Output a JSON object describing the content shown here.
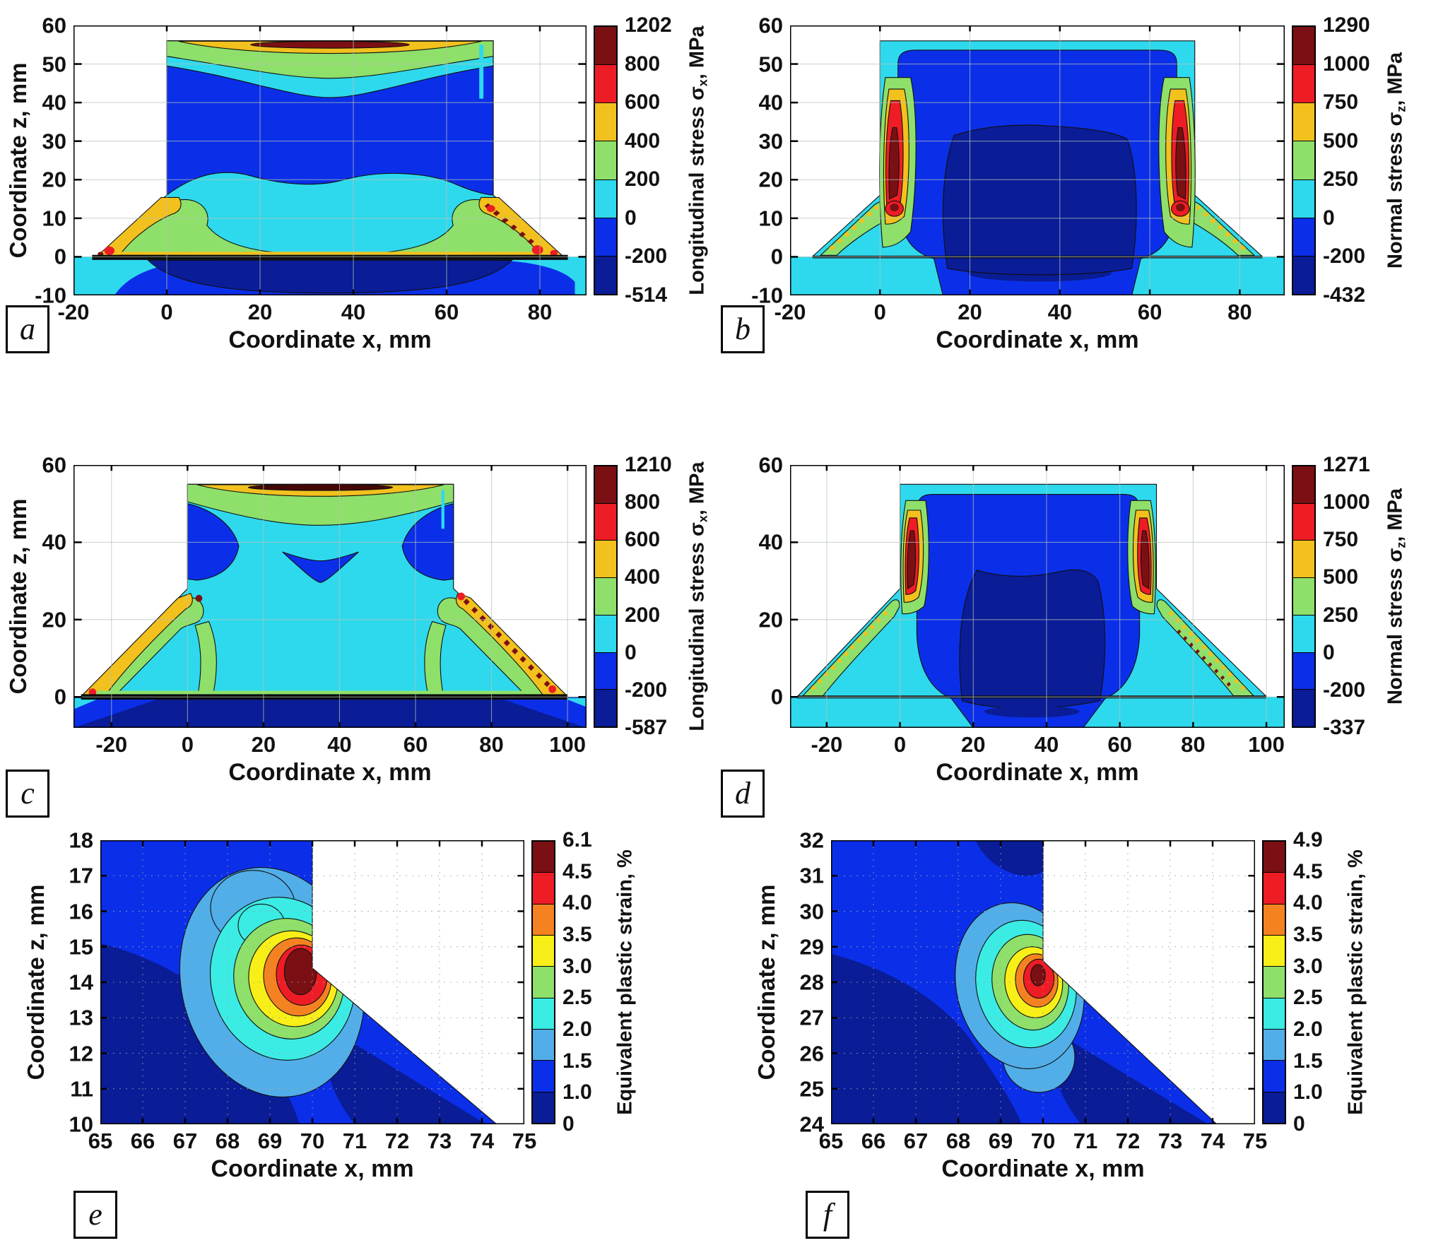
{
  "chart_data": [
    {
      "panel_letter": "a",
      "type": "heatmap",
      "plot_kind": "filled-contour",
      "x_title": "Coordinate x, mm",
      "y_title": "Coordinate z, mm",
      "x_domain": [
        -20,
        90
      ],
      "y_domain": [
        -10,
        60
      ],
      "x_ticks": {
        "values": [
          -20,
          0,
          20,
          40,
          60,
          80
        ],
        "labels": [
          "-20",
          "0",
          "20",
          "40",
          "60",
          "80"
        ]
      },
      "y_ticks": {
        "values": [
          60,
          50,
          40,
          30,
          20,
          10,
          0,
          -10
        ],
        "labels": [
          "60",
          "50",
          "40",
          "30",
          "20",
          "10",
          "0",
          "-10"
        ]
      },
      "colorbar": {
        "title_prefix": "Longitudinal stress σ",
        "title_sub": "x",
        "title_suffix": ", MPa",
        "vmax": 1202,
        "vmin": -514,
        "levels": [
          1202,
          800,
          600,
          400,
          200,
          0,
          -200,
          -514
        ],
        "tick_labels": [
          "1202",
          "800",
          "600",
          "400",
          "200",
          "0",
          "-200",
          "-514"
        ],
        "colors": [
          "#7a1013",
          "#ee1c25",
          "#f2c11e",
          "#8ee06a",
          "#2ed9ee",
          "#0b2fe8",
          "#0a1c96"
        ]
      }
    },
    {
      "panel_letter": "b",
      "type": "heatmap",
      "plot_kind": "filled-contour",
      "x_title": "Coordinate x, mm",
      "y_title": "",
      "x_domain": [
        -20,
        90
      ],
      "y_domain": [
        -10,
        60
      ],
      "x_ticks": {
        "values": [
          -20,
          0,
          20,
          40,
          60,
          80
        ],
        "labels": [
          "-20",
          "0",
          "20",
          "40",
          "60",
          "80"
        ]
      },
      "y_ticks": {
        "values": [
          60,
          50,
          40,
          30,
          20,
          10,
          0,
          -10
        ],
        "labels": [
          "60",
          "50",
          "40",
          "30",
          "20",
          "10",
          "0",
          "-10"
        ]
      },
      "colorbar": {
        "title_prefix": "Normal stress σ",
        "title_sub": "z",
        "title_suffix": ", MPa",
        "vmax": 1290,
        "vmin": -432,
        "levels": [
          1290,
          1000,
          750,
          500,
          250,
          0,
          -200,
          -432
        ],
        "tick_labels": [
          "1290",
          "1000",
          "750",
          "500",
          "250",
          "0",
          "-200",
          "-432"
        ],
        "colors": [
          "#7a1013",
          "#ee1c25",
          "#f2c11e",
          "#8ee06a",
          "#2ed9ee",
          "#0b2fe8",
          "#0a1c96"
        ]
      }
    },
    {
      "panel_letter": "c",
      "type": "heatmap",
      "plot_kind": "filled-contour",
      "x_title": "Coordinate x, mm",
      "y_title": "Coordinate z, mm",
      "x_domain": [
        -30,
        105
      ],
      "y_domain": [
        -8,
        60
      ],
      "x_ticks": {
        "values": [
          -20,
          0,
          20,
          40,
          60,
          80,
          100
        ],
        "labels": [
          "-20",
          "0",
          "20",
          "40",
          "60",
          "80",
          "100"
        ]
      },
      "y_ticks": {
        "values": [
          60,
          40,
          20,
          0
        ],
        "labels": [
          "60",
          "40",
          "20",
          "0"
        ]
      },
      "colorbar": {
        "title_prefix": "Longitudinal stress σ",
        "title_sub": "x",
        "title_suffix": ", MPa",
        "vmax": 1210,
        "vmin": -587,
        "levels": [
          1210,
          800,
          600,
          400,
          200,
          0,
          -200,
          -587
        ],
        "tick_labels": [
          "1210",
          "800",
          "600",
          "400",
          "200",
          "0",
          "-200",
          "-587"
        ],
        "colors": [
          "#7a1013",
          "#ee1c25",
          "#f2c11e",
          "#8ee06a",
          "#2ed9ee",
          "#0b2fe8",
          "#0a1c96"
        ]
      }
    },
    {
      "panel_letter": "d",
      "type": "heatmap",
      "plot_kind": "filled-contour",
      "x_title": "Coordinate x, mm",
      "y_title": "",
      "x_domain": [
        -30,
        105
      ],
      "y_domain": [
        -8,
        60
      ],
      "x_ticks": {
        "values": [
          -20,
          0,
          20,
          40,
          60,
          80,
          100
        ],
        "labels": [
          "-20",
          "0",
          "20",
          "40",
          "60",
          "80",
          "100"
        ]
      },
      "y_ticks": {
        "values": [
          60,
          40,
          20,
          0
        ],
        "labels": [
          "60",
          "40",
          "20",
          "0"
        ]
      },
      "colorbar": {
        "title_prefix": "Normal stress σ",
        "title_sub": "z",
        "title_suffix": ", MPa",
        "vmax": 1271,
        "vmin": -337,
        "levels": [
          1271,
          1000,
          750,
          500,
          250,
          0,
          -200,
          -337
        ],
        "tick_labels": [
          "1271",
          "1000",
          "750",
          "500",
          "250",
          "0",
          "-200",
          "-337"
        ],
        "colors": [
          "#7a1013",
          "#ee1c25",
          "#f2c11e",
          "#8ee06a",
          "#2ed9ee",
          "#0b2fe8",
          "#0a1c96"
        ]
      }
    },
    {
      "panel_letter": "e",
      "type": "heatmap",
      "plot_kind": "filled-contour",
      "x_title": "Coordinate x, mm",
      "y_title": "Coordinate z, mm",
      "x_domain": [
        65,
        75
      ],
      "y_domain": [
        10,
        18
      ],
      "x_ticks": {
        "values": [
          65,
          66,
          67,
          68,
          69,
          70,
          71,
          72,
          73,
          74,
          75
        ],
        "labels": [
          "65",
          "66",
          "67",
          "68",
          "69",
          "70",
          "71",
          "72",
          "73",
          "74",
          "75"
        ]
      },
      "y_ticks": {
        "values": [
          18,
          17,
          16,
          15,
          14,
          13,
          12,
          11,
          10
        ],
        "labels": [
          "18",
          "17",
          "16",
          "15",
          "14",
          "13",
          "12",
          "11",
          "10"
        ]
      },
      "colorbar": {
        "title_prefix": "Equivalent plastic strain, %",
        "title_sub": "",
        "title_suffix": "",
        "vmax": 6.1,
        "vmin": 0,
        "levels": [
          6.1,
          4.5,
          4.0,
          3.5,
          3.0,
          2.5,
          2.0,
          1.5,
          1.0,
          0
        ],
        "tick_labels": [
          "6.1",
          "4.5",
          "4.0",
          "3.5",
          "3.0",
          "2.5",
          "2.0",
          "1.5",
          "1.0",
          "0"
        ],
        "colors": [
          "#7a1013",
          "#ee1c25",
          "#f58220",
          "#f7ef17",
          "#8ee06a",
          "#3bece4",
          "#52aee8",
          "#0b2fe8",
          "#0a1c96"
        ]
      }
    },
    {
      "panel_letter": "f",
      "type": "heatmap",
      "plot_kind": "filled-contour",
      "x_title": "Coordinate x, mm",
      "y_title": "Coordinate z, mm",
      "x_domain": [
        65,
        75
      ],
      "y_domain": [
        24,
        32
      ],
      "x_ticks": {
        "values": [
          65,
          66,
          67,
          68,
          69,
          70,
          71,
          72,
          73,
          74,
          75
        ],
        "labels": [
          "65",
          "66",
          "67",
          "68",
          "69",
          "70",
          "71",
          "72",
          "73",
          "74",
          "75"
        ]
      },
      "y_ticks": {
        "values": [
          32,
          31,
          30,
          29,
          28,
          27,
          26,
          25,
          24
        ],
        "labels": [
          "32",
          "31",
          "30",
          "29",
          "28",
          "27",
          "26",
          "25",
          "24"
        ]
      },
      "colorbar": {
        "title_prefix": "Equivalent plastic strain, %",
        "title_sub": "",
        "title_suffix": "",
        "vmax": 4.9,
        "vmin": 0,
        "levels": [
          4.9,
          4.5,
          4.0,
          3.5,
          3.0,
          2.5,
          2.0,
          1.5,
          1.0,
          0
        ],
        "tick_labels": [
          "4.9",
          "4.5",
          "4.0",
          "3.5",
          "3.0",
          "2.5",
          "2.0",
          "1.5",
          "1.0",
          "0"
        ],
        "colors": [
          "#7a1013",
          "#ee1c25",
          "#f58220",
          "#f7ef17",
          "#8ee06a",
          "#3bece4",
          "#52aee8",
          "#0b2fe8",
          "#0a1c96"
        ]
      }
    }
  ]
}
